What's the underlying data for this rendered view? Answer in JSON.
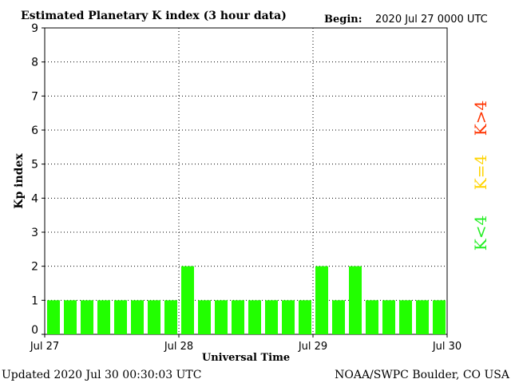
{
  "header": {
    "title": "Estimated Planetary K index (3 hour data)",
    "begin_label": "Begin:",
    "begin_value": "2020 Jul 27 0000 UTC"
  },
  "footer": {
    "updated": "Updated 2020 Jul 30 00:30:03 UTC",
    "credit": "NOAA/SWPC Boulder, CO USA"
  },
  "legend": [
    {
      "label": "K>4",
      "color": "#ff3300"
    },
    {
      "label": "K=4",
      "color": "#ffd400"
    },
    {
      "label": "K<4",
      "color": "#22ee22"
    }
  ],
  "chart_data": {
    "type": "bar",
    "title": "Estimated Planetary K index (3 hour data)",
    "xlabel": "Universal Time",
    "ylabel": "Kp index",
    "ylim": [
      0,
      9
    ],
    "yticks": [
      0,
      1,
      2,
      3,
      4,
      5,
      6,
      7,
      8,
      9
    ],
    "xticks": [
      "Jul 27",
      "Jul 28",
      "Jul 29",
      "Jul 30"
    ],
    "bar_interval_hours": 3,
    "values": [
      1,
      1,
      1,
      1,
      1,
      1,
      1,
      1,
      2,
      1,
      1,
      1,
      1,
      1,
      1,
      1,
      2,
      1,
      2,
      1,
      1,
      1,
      1,
      1
    ],
    "bar_color": "#22ff00",
    "grid": true
  }
}
